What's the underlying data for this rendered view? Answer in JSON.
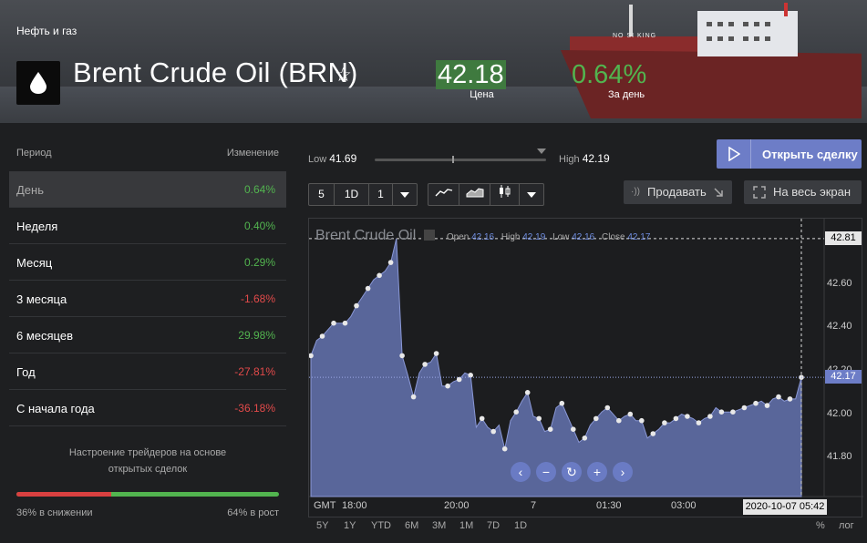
{
  "header": {
    "category": "Нефть и газ",
    "title": "Brent Crude Oil (BRN)",
    "price": "42.18",
    "price_label": "Цена",
    "change": "0.64%",
    "change_label": "За день",
    "ship_name": "NO SI KING"
  },
  "periods": {
    "col_period": "Период",
    "col_change": "Изменение",
    "rows": [
      {
        "name": "День",
        "value": "0.64%",
        "sign": "pos"
      },
      {
        "name": "Неделя",
        "value": "0.40%",
        "sign": "pos"
      },
      {
        "name": "Месяц",
        "value": "0.29%",
        "sign": "pos"
      },
      {
        "name": "3 месяца",
        "value": "-1.68%",
        "sign": "neg"
      },
      {
        "name": "6 месяцев",
        "value": "29.98%",
        "sign": "pos"
      },
      {
        "name": "Год",
        "value": "-27.81%",
        "sign": "neg"
      },
      {
        "name": "С начала года",
        "value": "-36.18%",
        "sign": "neg"
      }
    ]
  },
  "sentiment": {
    "text_line1": "Настроение трейдеров на основе",
    "text_line2": "открытых сделок",
    "down_pct": 36,
    "down_label": "36% в снижении",
    "up_label": "64% в рост"
  },
  "range": {
    "low_label": "Low",
    "low": "41.69",
    "high_label": "High",
    "high": "42.19"
  },
  "buttons": {
    "trade": "Открыть сделку",
    "sell": "Продавать",
    "fullscreen": "На весь экран"
  },
  "toolbar": {
    "interval_count": "5",
    "interval_unit": "1D",
    "interval_step": "1"
  },
  "chart_data": {
    "type": "area",
    "instrument": "Brent Crude Oil",
    "ohlc": {
      "open_label": "Open",
      "open": "42.16",
      "high_label": "High",
      "high": "42.19",
      "low_label": "Low",
      "low": "42.16",
      "close_label": "Close",
      "close": "42.17"
    },
    "y_ticks": [
      "42.60",
      "42.40",
      "42.20",
      "42.00",
      "41.80"
    ],
    "y_range": [
      41.62,
      42.86
    ],
    "hover_value": "42.81",
    "last_value": "42.17",
    "x_ticks": [
      "18:00",
      "20:00",
      "7",
      "01:30",
      "03:00"
    ],
    "timezone": "GMT",
    "cursor_time": "2020-10-07 05:42",
    "x": [
      0,
      1,
      2,
      3,
      4,
      5,
      6,
      7,
      8,
      9,
      10,
      11,
      12,
      13,
      14,
      15,
      16,
      17,
      18,
      19,
      20,
      21,
      22,
      23,
      24,
      25,
      26,
      27,
      28,
      29,
      30,
      31,
      32,
      33,
      34,
      35,
      36,
      37,
      38,
      39,
      40,
      41,
      42,
      43,
      44,
      45,
      46,
      47,
      48,
      49,
      50,
      51,
      52,
      53,
      54,
      55,
      56,
      57,
      58,
      59,
      60,
      61,
      62,
      63,
      64,
      65,
      66,
      67,
      68,
      69,
      70,
      71,
      72,
      73,
      74,
      75,
      76,
      77,
      78,
      79,
      80,
      81,
      82,
      83,
      84,
      85,
      86
    ],
    "values": [
      42.27,
      42.34,
      42.36,
      42.39,
      42.42,
      42.42,
      42.42,
      42.45,
      42.5,
      42.54,
      42.58,
      42.62,
      42.64,
      42.66,
      42.7,
      42.81,
      42.27,
      42.18,
      42.08,
      42.19,
      42.23,
      42.24,
      42.28,
      42.13,
      42.13,
      42.15,
      42.16,
      42.19,
      42.18,
      41.94,
      41.98,
      41.94,
      41.92,
      41.95,
      41.84,
      41.97,
      42.01,
      42.06,
      42.1,
      41.99,
      41.98,
      41.92,
      41.93,
      42.03,
      42.05,
      41.99,
      41.93,
      41.87,
      41.89,
      41.95,
      41.98,
      42.01,
      42.03,
      42.0,
      41.97,
      41.99,
      42.0,
      41.97,
      41.97,
      41.89,
      41.91,
      41.93,
      41.96,
      41.96,
      41.98,
      42.0,
      41.99,
      41.98,
      41.96,
      41.98,
      41.99,
      42.03,
      42.01,
      42.01,
      42.01,
      42.02,
      42.03,
      42.04,
      42.05,
      42.06,
      42.04,
      42.07,
      42.08,
      42.06,
      42.07,
      42.07,
      42.17
    ],
    "period_links": [
      "5Y",
      "1Y",
      "YTD",
      "6M",
      "3M",
      "1M",
      "7D",
      "1D"
    ],
    "scale_links": [
      "%",
      "лог"
    ]
  }
}
